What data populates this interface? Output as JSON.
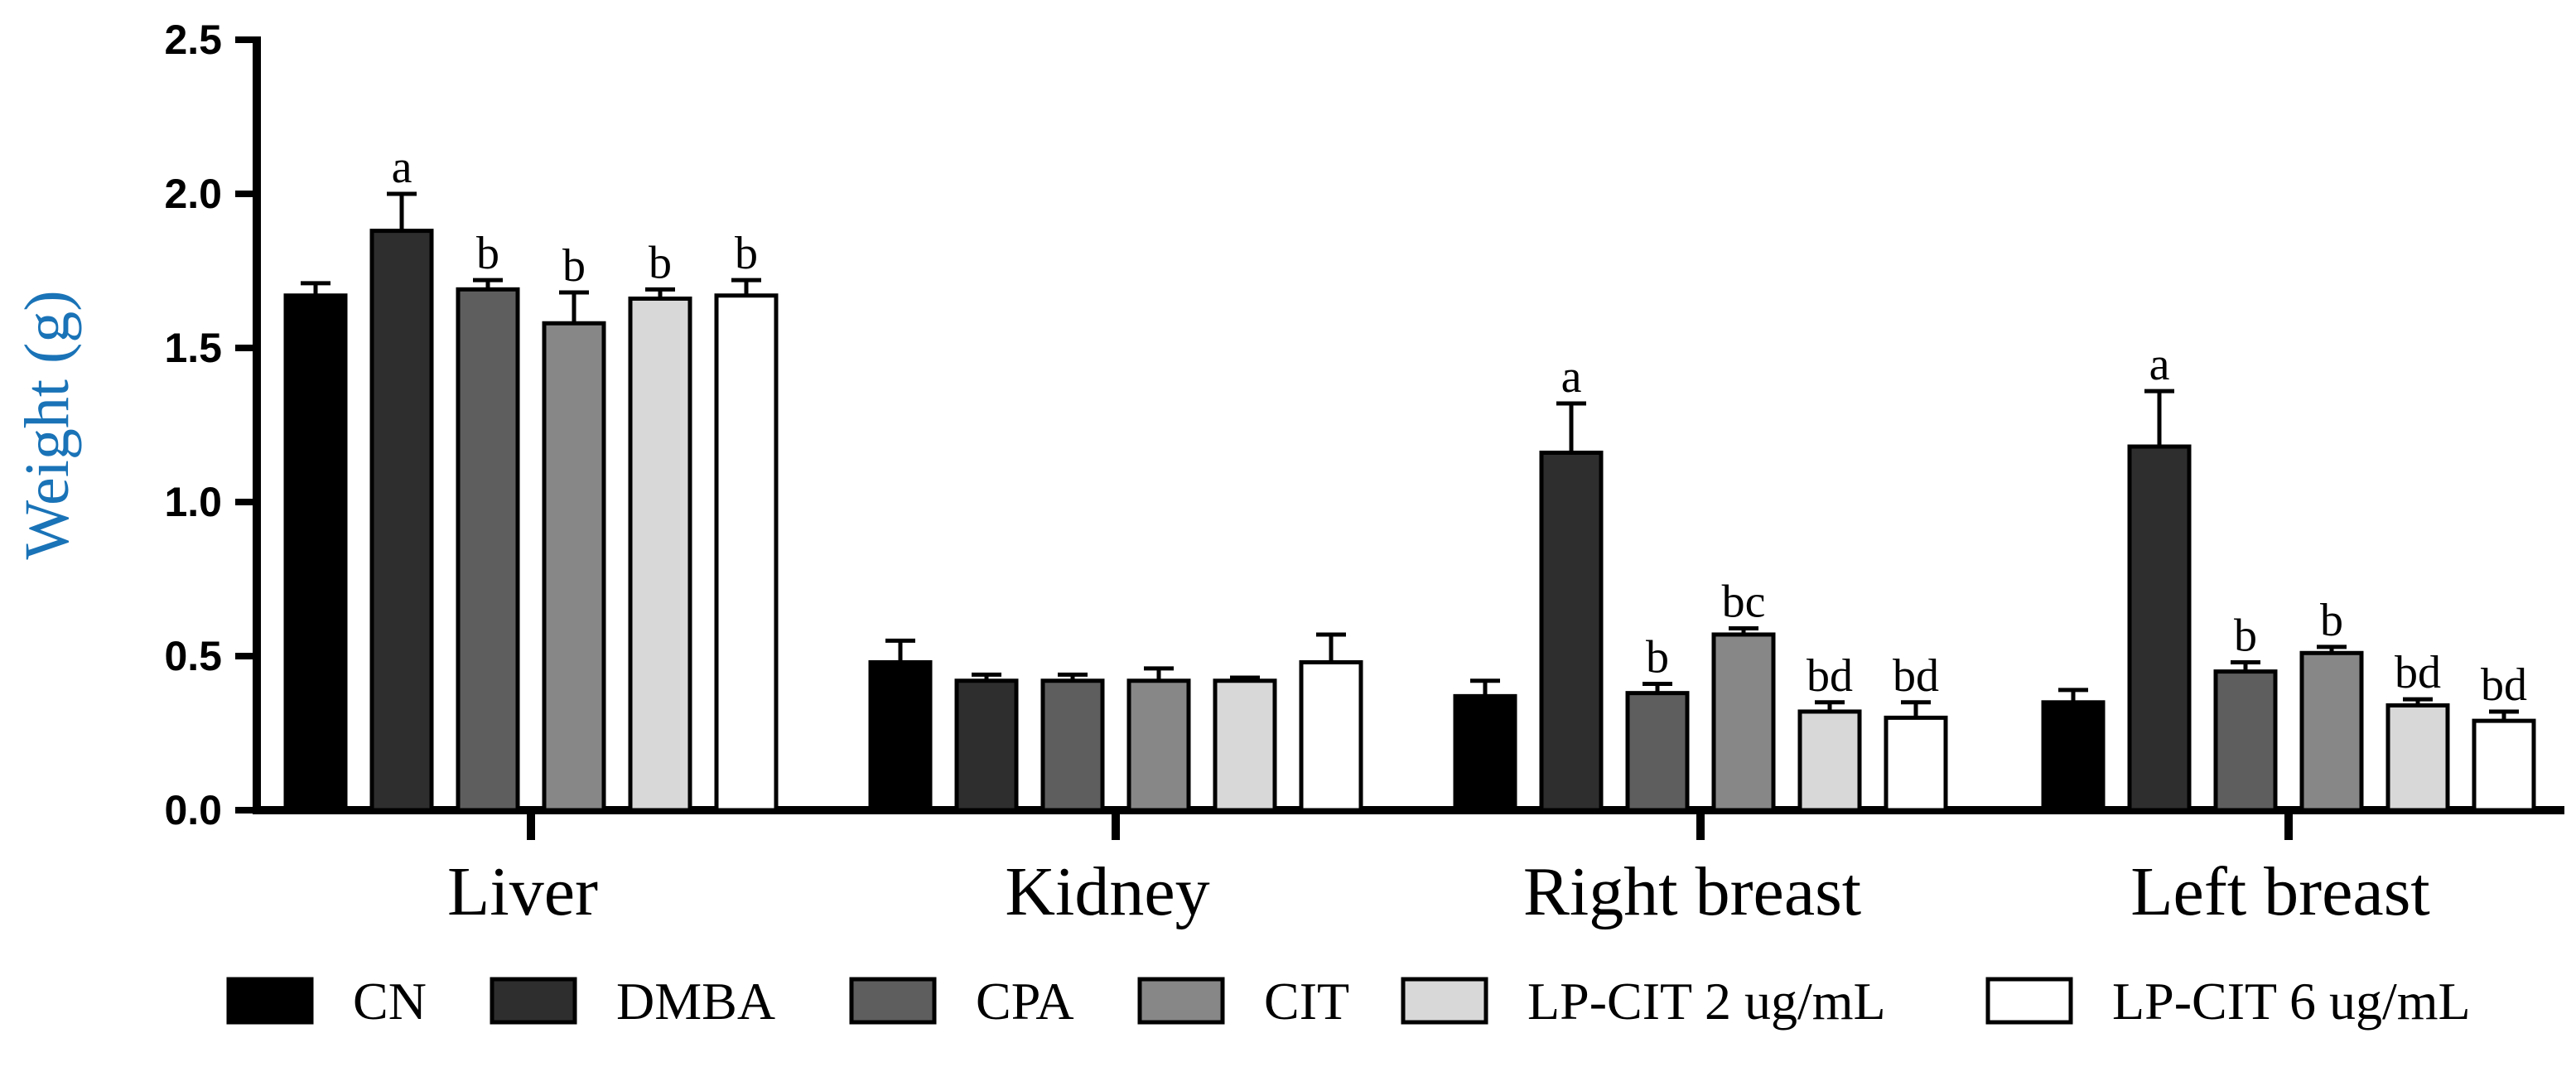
{
  "chart_data": {
    "type": "bar",
    "ylabel": "Weight (g)",
    "xlabel": "",
    "ylim": [
      0,
      2.5
    ],
    "yticks": [
      "0.0",
      "0.5",
      "1.0",
      "1.5",
      "2.0",
      "2.5"
    ],
    "categories": [
      "Liver",
      "Kidney",
      "Right breast",
      "Left breast"
    ],
    "legend_position": "bottom",
    "series": [
      {
        "name": "CN",
        "color": "#000000",
        "values": [
          1.67,
          0.48,
          0.37,
          0.35
        ],
        "errors": [
          0.04,
          0.07,
          0.05,
          0.04
        ],
        "annotations": [
          "",
          "",
          "",
          ""
        ]
      },
      {
        "name": "DMBA",
        "color": "#2e2e2e",
        "values": [
          1.88,
          0.42,
          1.16,
          1.18
        ],
        "errors": [
          0.12,
          0.02,
          0.16,
          0.18
        ],
        "annotations": [
          "a",
          "",
          "a",
          "a"
        ]
      },
      {
        "name": "CPA",
        "color": "#5e5e5e",
        "values": [
          1.69,
          0.42,
          0.38,
          0.45
        ],
        "errors": [
          0.03,
          0.02,
          0.03,
          0.03
        ],
        "annotations": [
          "b",
          "",
          "b",
          "b"
        ]
      },
      {
        "name": "CIT",
        "color": "#878787",
        "values": [
          1.58,
          0.42,
          0.57,
          0.51
        ],
        "errors": [
          0.1,
          0.04,
          0.02,
          0.02
        ],
        "annotations": [
          "b",
          "",
          "bc",
          "b"
        ]
      },
      {
        "name": "LP-CIT 2 ug/mL",
        "color": "#d8d8d8",
        "values": [
          1.66,
          0.42,
          0.32,
          0.34
        ],
        "errors": [
          0.03,
          0.01,
          0.03,
          0.02
        ],
        "annotations": [
          "b",
          "",
          "bd",
          "bd"
        ]
      },
      {
        "name": "LP-CIT 6 ug/mL",
        "color": "#ffffff",
        "values": [
          1.67,
          0.48,
          0.3,
          0.29
        ],
        "errors": [
          0.05,
          0.09,
          0.05,
          0.03
        ],
        "annotations": [
          "b",
          "",
          "bd",
          "bd"
        ]
      }
    ]
  }
}
